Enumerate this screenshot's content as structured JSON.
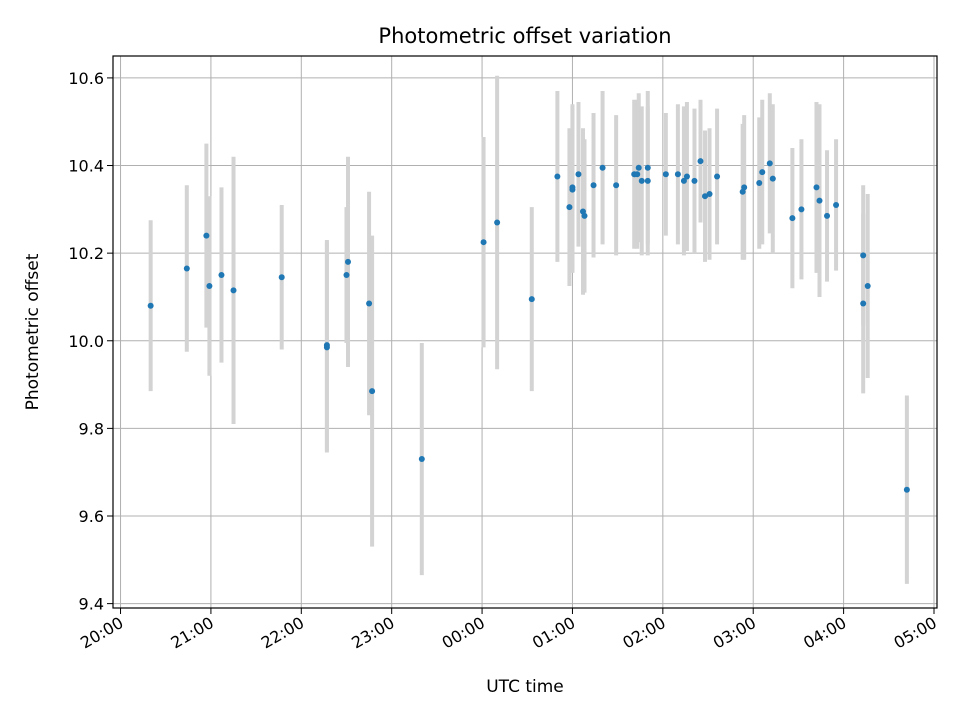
{
  "chart_data": {
    "type": "scatter",
    "title": "Photometric offset variation",
    "xlabel": "UTC time",
    "ylabel": "Photometric offset",
    "xlim": [
      "19:55",
      "05:02"
    ],
    "ylim": [
      9.39,
      10.65
    ],
    "grid": true,
    "x_ticks": [
      "20:00",
      "21:00",
      "22:00",
      "23:00",
      "00:00",
      "01:00",
      "02:00",
      "03:00",
      "04:00",
      "05:00"
    ],
    "y_ticks": [
      "9.4",
      "9.6",
      "9.8",
      "10.0",
      "10.2",
      "10.4",
      "10.6"
    ],
    "colors": {
      "point": "#1f77b4",
      "errorbar": "#d3d3d3",
      "grid": "#b0b0b0"
    },
    "series": [
      {
        "x": [
          "20:20",
          "20:44",
          "20:57",
          "20:59",
          "21:07",
          "21:15",
          "21:47",
          "22:17",
          "22:17",
          "22:30",
          "22:31",
          "22:45",
          "22:47",
          "23:20",
          "00:01",
          "00:10",
          "00:33",
          "00:50",
          "00:58",
          "01:00",
          "01:00",
          "01:04",
          "01:07",
          "01:08",
          "01:14",
          "01:20",
          "01:29",
          "01:41",
          "01:43",
          "01:44",
          "01:46",
          "01:50",
          "01:50",
          "02:02",
          "02:10",
          "02:14",
          "02:16",
          "02:21",
          "02:25",
          "02:28",
          "02:31",
          "02:36",
          "02:53",
          "02:54",
          "03:04",
          "03:06",
          "03:11",
          "03:13",
          "03:26",
          "03:32",
          "03:42",
          "03:44",
          "03:49",
          "03:55",
          "04:13",
          "04:13",
          "04:16",
          "04:42"
        ],
        "y": [
          10.08,
          10.165,
          10.24,
          10.125,
          10.15,
          10.115,
          10.145,
          9.985,
          9.99,
          10.15,
          10.18,
          10.085,
          9.885,
          9.73,
          10.225,
          10.27,
          10.095,
          10.375,
          10.305,
          10.345,
          10.35,
          10.38,
          10.295,
          10.285,
          10.355,
          10.395,
          10.355,
          10.38,
          10.38,
          10.395,
          10.365,
          10.395,
          10.365,
          10.38,
          10.38,
          10.365,
          10.375,
          10.365,
          10.41,
          10.33,
          10.335,
          10.375,
          10.34,
          10.35,
          10.36,
          10.385,
          10.405,
          10.37,
          10.28,
          10.3,
          10.35,
          10.32,
          10.285,
          10.31,
          10.195,
          10.085,
          10.125,
          9.66
        ],
        "err": [
          0.195,
          0.19,
          0.21,
          0.205,
          0.2,
          0.305,
          0.165,
          0.24,
          0.24,
          0.155,
          0.24,
          0.255,
          0.355,
          0.265,
          0.24,
          0.335,
          0.21,
          0.195,
          0.18,
          0.19,
          0.19,
          0.165,
          0.19,
          0.175,
          0.165,
          0.175,
          0.16,
          0.17,
          0.17,
          0.17,
          0.17,
          0.175,
          0.17,
          0.14,
          0.16,
          0.17,
          0.17,
          0.165,
          0.14,
          0.15,
          0.15,
          0.155,
          0.155,
          0.165,
          0.15,
          0.165,
          0.16,
          0.17,
          0.16,
          0.16,
          0.195,
          0.22,
          0.15,
          0.15,
          0.16,
          0.205,
          0.21,
          0.215
        ]
      }
    ]
  }
}
